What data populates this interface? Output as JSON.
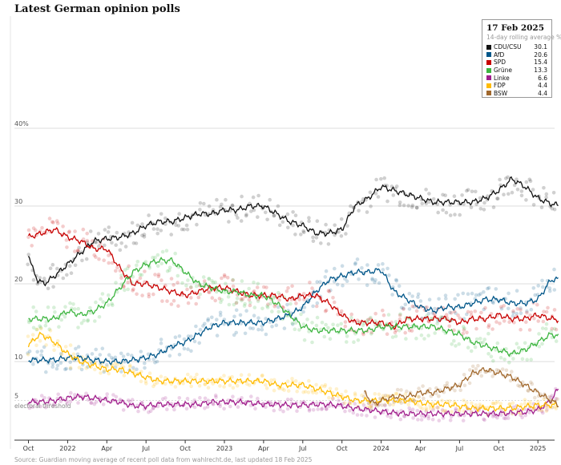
{
  "title": "Latest German opinion polls",
  "source": "Source: Guardian moving average of recent poll data from wahlrecht.de, last updated 18 Feb 2025",
  "legend": {
    "date": "17 Feb 2025",
    "subtitle": "14-day rolling average %"
  },
  "chart_data": {
    "type": "line",
    "title": "Latest German opinion polls",
    "ylabel": "%",
    "ylim": [
      0,
      42
    ],
    "y_ticks": [
      5,
      10,
      20,
      30,
      40
    ],
    "y_tick_labels": [
      "5",
      "10",
      "20",
      "30",
      "40%"
    ],
    "x_ticks": [
      "Oct",
      "2022",
      "Apr",
      "Jul",
      "Oct",
      "2023",
      "Apr",
      "Jul",
      "Oct",
      "2024",
      "Apr",
      "Jul",
      "Oct",
      "2025"
    ],
    "x_tick_months": [
      0,
      3,
      6,
      9,
      12,
      15,
      18,
      21,
      24,
      27,
      30,
      33,
      36,
      39
    ],
    "x_range_months": [
      0,
      40.6
    ],
    "x_origin": "2021-10",
    "annotation": {
      "text": "electoral threshold",
      "value": 5
    },
    "series": [
      {
        "name": "CDU/CSU",
        "color": "#121212",
        "latest": "30.1",
        "x": [
          0,
          0.3,
          0.7,
          1.2,
          2,
          3,
          4,
          5,
          6,
          7,
          8,
          9,
          10,
          11,
          12,
          13,
          14,
          15,
          16,
          17,
          18,
          19,
          20,
          21,
          22,
          23,
          24,
          25,
          26,
          27,
          28,
          29,
          30,
          31,
          32,
          33,
          34,
          35,
          36,
          37,
          38,
          39,
          40,
          40.6
        ],
        "values": [
          23.8,
          22,
          20.5,
          20,
          21,
          22.5,
          24,
          25.5,
          25.8,
          26,
          26.5,
          27.5,
          28,
          28,
          28.5,
          29,
          29,
          29.5,
          29.5,
          30,
          30,
          29,
          28,
          27.5,
          26.5,
          26.5,
          27,
          30,
          31,
          32.5,
          32,
          31.5,
          31,
          30.5,
          30.5,
          30.5,
          30.5,
          31,
          32,
          33.5,
          32.5,
          31,
          30.3,
          30.1
        ]
      },
      {
        "name": "AfD",
        "color": "#005689",
        "latest": "20.6",
        "x": [
          0,
          1,
          2,
          3,
          4,
          5,
          6,
          7,
          8,
          9,
          10,
          11,
          12,
          13,
          14,
          15,
          16,
          17,
          18,
          19,
          20,
          21,
          22,
          23,
          24,
          25,
          26,
          27,
          28,
          29,
          30,
          31,
          32,
          33,
          34,
          35,
          36,
          37,
          38,
          39,
          40,
          40.6
        ],
        "values": [
          10.2,
          10.2,
          10.2,
          10.5,
          10.5,
          10.2,
          10,
          10,
          10.2,
          10.5,
          11,
          12,
          12.5,
          13.5,
          14.5,
          15,
          15,
          15,
          15,
          15.5,
          16,
          17,
          19,
          20.5,
          21,
          21.5,
          21.5,
          21.8,
          19,
          18,
          17,
          16.5,
          17,
          17,
          17.5,
          18,
          18,
          17.5,
          17.5,
          18,
          20.5,
          20.6
        ]
      },
      {
        "name": "SPD",
        "color": "#c70000",
        "latest": "15.4",
        "x": [
          0,
          1,
          2,
          3,
          4,
          5,
          6,
          7,
          8,
          9,
          10,
          11,
          12,
          13,
          14,
          15,
          16,
          17,
          18,
          19,
          20,
          21,
          22,
          23,
          24,
          25,
          26,
          27,
          28,
          29,
          30,
          31,
          32,
          33,
          34,
          35,
          36,
          37,
          38,
          39,
          40,
          40.6
        ],
        "values": [
          26,
          26.5,
          27,
          26,
          25.5,
          24.5,
          24.5,
          22,
          20,
          20,
          19.5,
          19,
          18.5,
          19,
          19.5,
          19.5,
          19,
          18.5,
          18.5,
          18.5,
          18,
          18.5,
          18.5,
          17.5,
          16,
          15,
          15,
          15,
          14.5,
          15.5,
          15.5,
          15.5,
          15.5,
          15,
          15.5,
          15.5,
          16,
          15.5,
          15.5,
          16,
          15.5,
          15.4
        ]
      },
      {
        "name": "Grüne",
        "color": "#3db540",
        "latest": "13.3",
        "x": [
          0,
          1,
          2,
          3,
          4,
          5,
          6,
          7,
          8,
          9,
          10,
          11,
          12,
          13,
          14,
          15,
          16,
          17,
          18,
          19,
          20,
          21,
          22,
          23,
          24,
          25,
          26,
          27,
          28,
          29,
          30,
          31,
          32,
          33,
          34,
          35,
          36,
          37,
          38,
          39,
          40,
          40.6
        ],
        "values": [
          15.5,
          15.5,
          15.5,
          16.5,
          16,
          16.5,
          17.5,
          19.5,
          21.5,
          22.5,
          23,
          23,
          21.5,
          20,
          19.5,
          19,
          19,
          18.5,
          18.5,
          17.5,
          16,
          14.5,
          14,
          14,
          14,
          14,
          14,
          14.5,
          14.5,
          14.5,
          14.5,
          14.5,
          14,
          13.5,
          12.5,
          12,
          11.5,
          11,
          11.5,
          12.5,
          13.5,
          13.3
        ]
      },
      {
        "name": "Linke",
        "color": "#a01e8c",
        "latest": "6.6",
        "x": [
          0,
          1,
          2,
          3,
          4,
          5,
          6,
          7,
          8,
          9,
          10,
          11,
          12,
          13,
          14,
          15,
          16,
          17,
          18,
          19,
          20,
          21,
          22,
          23,
          24,
          25,
          26,
          27,
          28,
          29,
          30,
          31,
          32,
          33,
          34,
          35,
          36,
          37,
          38,
          39,
          40,
          40.6
        ],
        "values": [
          4.8,
          4.8,
          5,
          5.3,
          5.5,
          5.3,
          5,
          4.8,
          4.3,
          4.3,
          4.5,
          4.5,
          4.5,
          4.5,
          4.8,
          4.8,
          4.8,
          4.7,
          4.5,
          4.5,
          4.4,
          4.4,
          4.5,
          4.5,
          4.3,
          4,
          3.8,
          3.6,
          3.4,
          3.3,
          3.3,
          3.3,
          3.3,
          3.3,
          3.3,
          3.3,
          3.3,
          3.4,
          3.5,
          3.8,
          5,
          6.6
        ]
      },
      {
        "name": "FDP",
        "color": "#ffbb00",
        "latest": "4.4",
        "x": [
          0,
          0.5,
          1,
          1.5,
          2,
          3,
          4,
          5,
          6,
          7,
          8,
          9,
          10,
          11,
          12,
          13,
          14,
          15,
          16,
          17,
          18,
          19,
          20,
          21,
          22,
          23,
          24,
          25,
          26,
          27,
          28,
          29,
          30,
          31,
          32,
          33,
          34,
          35,
          36,
          37,
          38,
          39,
          40,
          40.6
        ],
        "values": [
          12,
          13,
          13.5,
          13,
          12.5,
          11,
          10,
          9.5,
          9,
          9,
          8.5,
          8,
          7.5,
          7.5,
          7.5,
          7.5,
          7.5,
          7.5,
          7.5,
          7.5,
          7.5,
          7,
          7,
          7,
          6.5,
          6,
          5.5,
          5,
          5,
          5,
          5,
          5,
          4.7,
          4.5,
          4.5,
          4.3,
          4,
          4,
          4,
          4,
          4.2,
          4.4,
          4.4,
          4.4
        ]
      },
      {
        "name": "BSW",
        "color": "#a1682d",
        "latest": "4.4",
        "x": [
          25.7,
          26.5,
          27,
          28,
          29,
          30,
          31,
          32,
          33,
          34,
          35,
          36,
          37,
          38,
          39,
          40,
          40.6
        ],
        "values": [
          6,
          4.5,
          5,
          5.5,
          5.5,
          6,
          6,
          6.5,
          7,
          8.5,
          9,
          8.5,
          8,
          7,
          6,
          5,
          4.4
        ]
      }
    ]
  }
}
